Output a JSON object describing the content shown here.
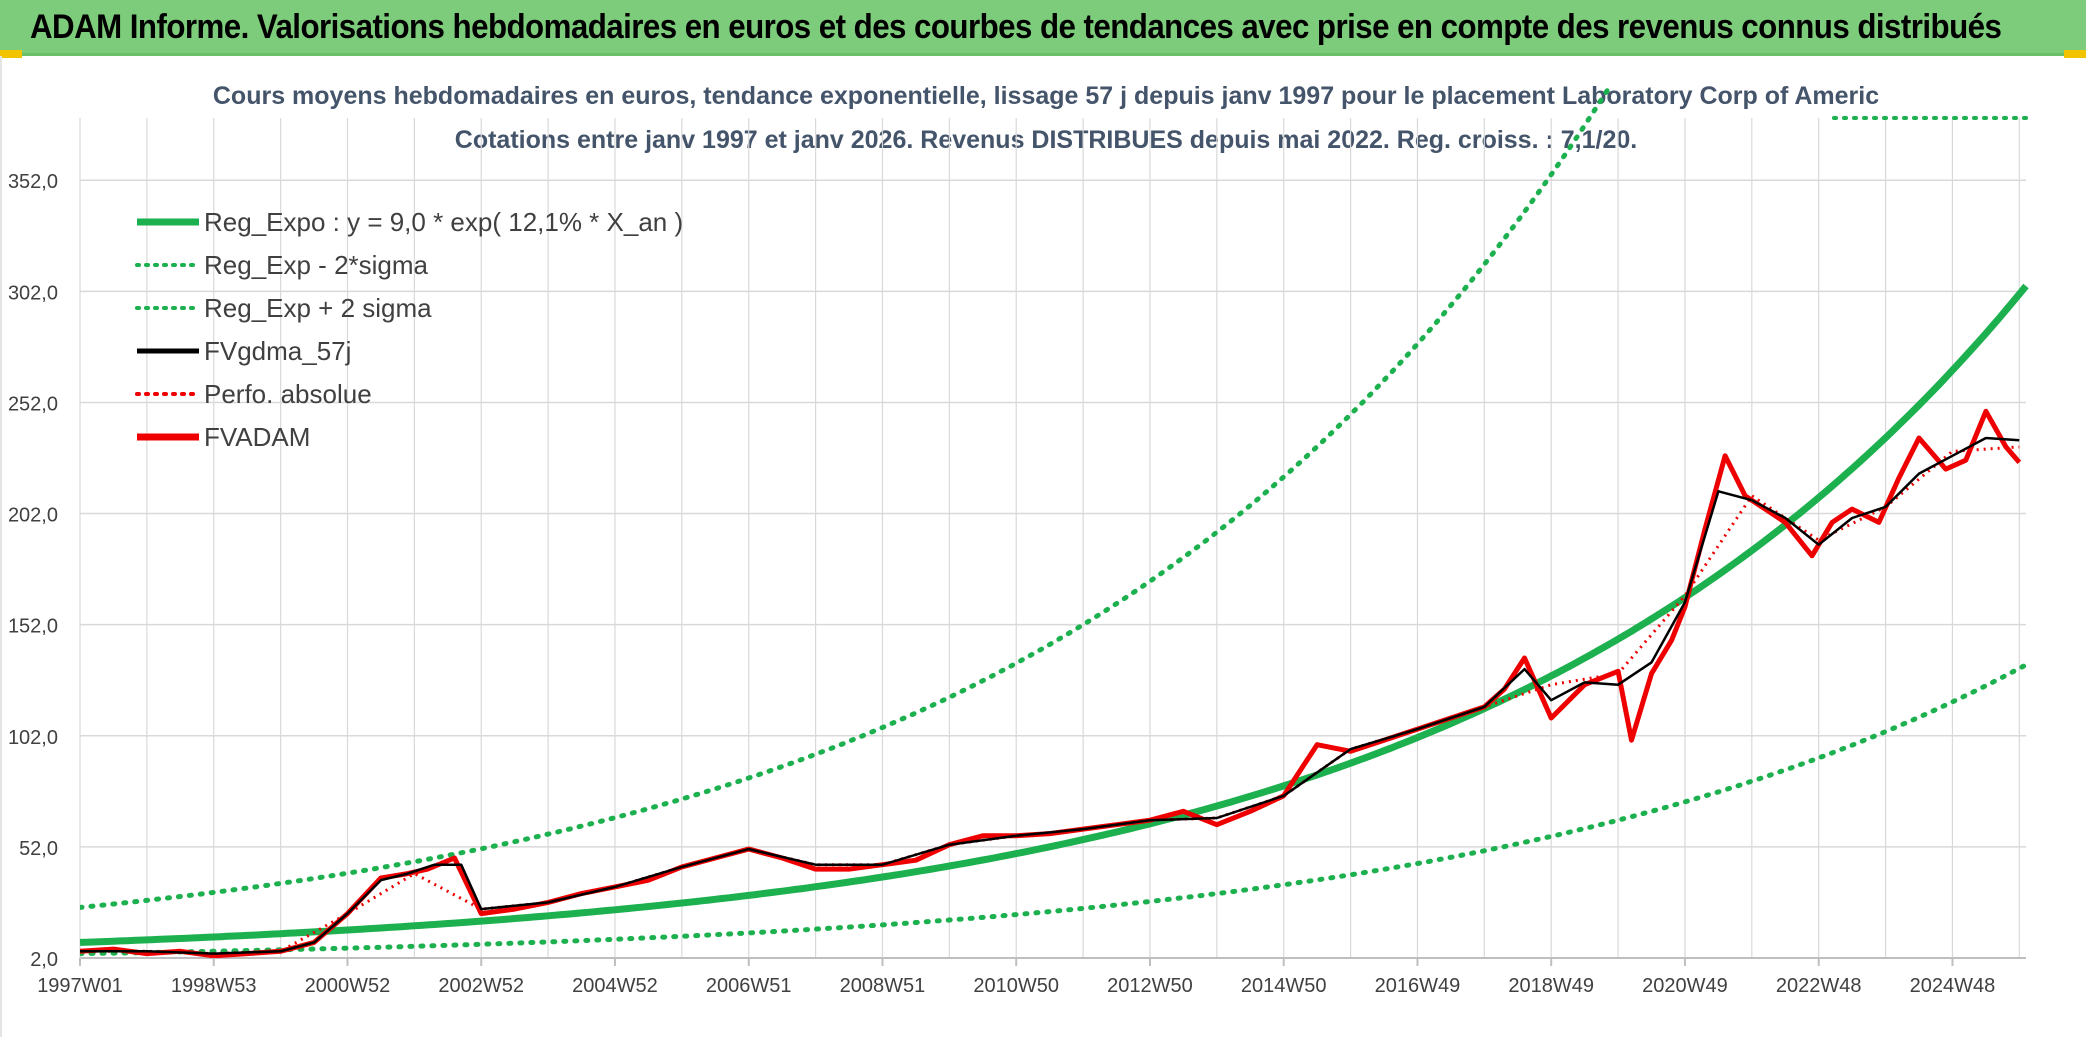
{
  "banner": {
    "title": "ADAM Informe. Valorisations hebdomadaires en euros et des courbes de tendances avec prise en compte des revenus connus distribués"
  },
  "colors": {
    "banner_bg": "#7dcc7b",
    "reg_green": "#1db04f",
    "black": "#000000",
    "red": "#ee0000",
    "grid": "#d9d9d9",
    "title_text": "#44546a"
  },
  "chart_data": {
    "type": "line",
    "title_line1": "Cours moyens hebdomadaires en euros, tendance exponentielle, lissage 57 j depuis janv 1997 pour le placement Laboratory Corp of Americ",
    "title_line2": "Cotations entre janv 1997 et janv 2026. Revenus DISTRIBUES depuis mai 2022. Reg. croiss. : 7,1/20.",
    "xlabel": "",
    "ylabel": "",
    "x_range": [
      1997.0,
      2026.1
    ],
    "ylim": [
      2.0,
      380.0
    ],
    "grid": true,
    "legend_position": "top-left",
    "y_ticks": [
      "2,0",
      "52,0",
      "102,0",
      "152,0",
      "202,0",
      "252,0",
      "302,0",
      "352,0"
    ],
    "y_tick_values": [
      2,
      52,
      102,
      152,
      202,
      252,
      302,
      352
    ],
    "x_ticks": [
      "1997W01",
      "1998W53",
      "2000W52",
      "2002W52",
      "2004W52",
      "2006W51",
      "2008W51",
      "2010W50",
      "2012W50",
      "2014W50",
      "2016W49",
      "2018W49",
      "2020W49",
      "2022W48",
      "2024W48"
    ],
    "x_tick_positions": [
      1997.0,
      1999.0,
      2001.0,
      2003.0,
      2005.0,
      2007.0,
      2009.0,
      2011.0,
      2013.0,
      2015.0,
      2017.0,
      2019.0,
      2021.0,
      2023.0,
      2025.0
    ],
    "legend": [
      {
        "label": "Reg_Expo : y = 9,0 * exp( 12,1% *  X_an )",
        "style": "solid-thick",
        "color": "#1db04f"
      },
      {
        "label": "Reg_Exp - 2*sigma",
        "style": "dotted",
        "color": "#1db04f"
      },
      {
        "label": "Reg_Exp + 2 sigma",
        "style": "dotted",
        "color": "#1db04f"
      },
      {
        "label": "FVgdma_57j",
        "style": "solid",
        "color": "#000000"
      },
      {
        "label": "Perfo. absolue",
        "style": "dotted",
        "color": "#ee0000"
      },
      {
        "label": "FVADAM",
        "style": "solid-thick",
        "color": "#ee0000"
      }
    ],
    "regression": {
      "a": 9.0,
      "b": 0.121,
      "t0": 1997.0
    },
    "sigma_bands": {
      "upper_factor": 2.75,
      "lower_factor": 0.44
    },
    "series": [
      {
        "name": "FVADAM",
        "x": [
          1997.0,
          1997.5,
          1998.0,
          1998.5,
          1999.0,
          1999.5,
          2000.0,
          2000.5,
          2001.0,
          2001.5,
          2001.9,
          2002.2,
          2002.6,
          2003.0,
          2003.5,
          2004.0,
          2004.5,
          2005.0,
          2005.5,
          2006.0,
          2006.5,
          2007.0,
          2007.5,
          2008.0,
          2008.5,
          2009.0,
          2009.5,
          2010.0,
          2010.5,
          2011.0,
          2011.5,
          2012.0,
          2012.5,
          2013.0,
          2013.5,
          2014.0,
          2014.5,
          2015.0,
          2015.5,
          2016.0,
          2016.5,
          2017.0,
          2017.5,
          2018.0,
          2018.3,
          2018.6,
          2019.0,
          2019.5,
          2020.0,
          2020.2,
          2020.5,
          2020.8,
          2021.0,
          2021.3,
          2021.6,
          2021.9,
          2022.2,
          2022.5,
          2022.9,
          2023.2,
          2023.5,
          2023.9,
          2024.2,
          2024.5,
          2024.9,
          2025.2,
          2025.5,
          2025.8,
          2026.0
        ],
        "values": [
          5,
          6,
          4,
          5,
          3,
          4,
          5,
          9,
          22,
          38,
          40,
          42,
          47,
          22,
          24,
          27,
          31,
          34,
          37,
          43,
          47,
          51,
          47,
          42,
          42,
          44,
          46,
          53,
          57,
          57,
          58,
          60,
          62,
          64,
          68,
          62,
          68,
          75,
          98,
          95,
          100,
          105,
          110,
          115,
          123,
          137,
          110,
          125,
          131,
          100,
          130,
          145,
          160,
          195,
          228,
          210,
          204,
          198,
          183,
          198,
          204,
          198,
          218,
          236,
          222,
          226,
          248,
          232,
          225
        ]
      },
      {
        "name": "FVgdma_57j",
        "x": [
          1997.0,
          1998.0,
          1999.0,
          2000.0,
          2000.5,
          2001.0,
          2001.5,
          2001.9,
          2002.3,
          2002.7,
          2003.0,
          2004.0,
          2005.0,
          2006.0,
          2007.0,
          2008.0,
          2009.0,
          2010.0,
          2011.0,
          2012.0,
          2013.0,
          2014.0,
          2015.0,
          2016.0,
          2017.0,
          2018.0,
          2018.6,
          2019.0,
          2019.5,
          2020.0,
          2020.5,
          2021.0,
          2021.5,
          2022.0,
          2022.5,
          2023.0,
          2023.5,
          2024.0,
          2024.5,
          2025.0,
          2025.5,
          2026.0
        ],
        "values": [
          5,
          5,
          4,
          5,
          9,
          22,
          37,
          40,
          44,
          44,
          24,
          27,
          34,
          43,
          51,
          44,
          44,
          53,
          57,
          60,
          64,
          65,
          75,
          96,
          105,
          115,
          132,
          118,
          126,
          125,
          135,
          162,
          212,
          208,
          200,
          188,
          200,
          205,
          220,
          228,
          236,
          235
        ]
      },
      {
        "name": "Perfo. absolue",
        "x": [
          1997.0,
          1998.0,
          1999.0,
          2000.0,
          2001.0,
          2002.0,
          2003.0,
          2004.0,
          2005.0,
          2006.0,
          2007.0,
          2008.0,
          2009.0,
          2010.0,
          2011.0,
          2012.0,
          2013.0,
          2014.0,
          2015.0,
          2016.0,
          2017.0,
          2018.0,
          2019.0,
          2020.0,
          2021.0,
          2022.0,
          2023.0,
          2024.0,
          2025.0,
          2026.0
        ],
        "values": [
          5,
          5,
          4,
          5,
          22,
          40,
          24,
          27,
          34,
          43,
          51,
          44,
          44,
          53,
          57,
          60,
          64,
          65,
          75,
          96,
          105,
          115,
          125,
          130,
          165,
          210,
          190,
          205,
          230,
          232
        ]
      }
    ]
  }
}
